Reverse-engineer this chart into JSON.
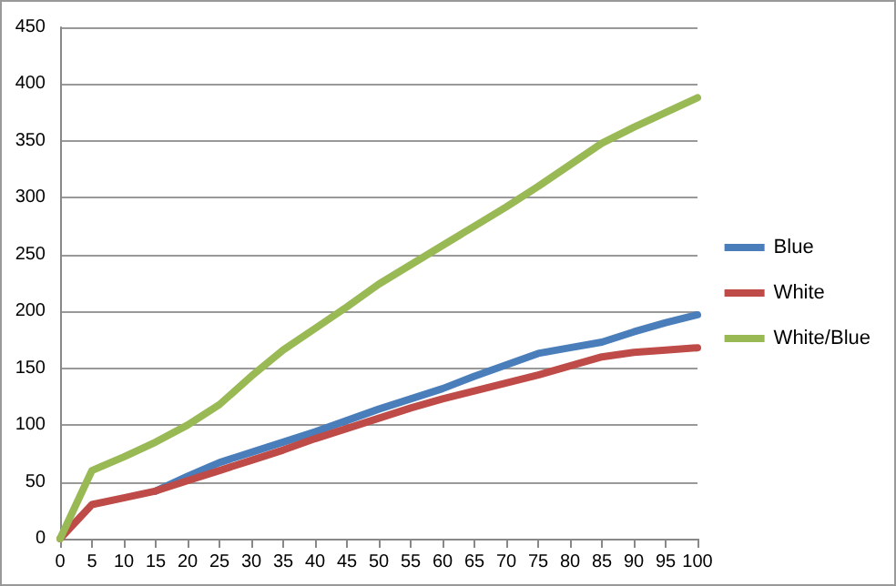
{
  "chart_data": {
    "type": "line",
    "categories": [
      "0",
      "5",
      "10",
      "15",
      "20",
      "25",
      "30",
      "35",
      "40",
      "45",
      "50",
      "55",
      "60",
      "65",
      "70",
      "75",
      "80",
      "85",
      "90",
      "95",
      "100"
    ],
    "series": [
      {
        "name": "Blue",
        "color": "#4a7ebb",
        "values": [
          null,
          null,
          null,
          42,
          55,
          67,
          76,
          85,
          94,
          104,
          114,
          123,
          132,
          143,
          153,
          163,
          168,
          173,
          182,
          190,
          197
        ]
      },
      {
        "name": "White",
        "color": "#be4b48",
        "values": [
          0,
          30,
          36,
          42,
          51,
          60,
          69,
          78,
          88,
          97,
          106,
          115,
          123,
          130,
          137,
          144,
          152,
          160,
          164,
          166,
          168
        ]
      },
      {
        "name": "White/Blue",
        "color": "#98b954",
        "values": [
          0,
          60,
          72,
          85,
          100,
          118,
          143,
          166,
          185,
          204,
          224,
          241,
          258,
          275,
          292,
          310,
          329,
          348,
          362,
          375,
          388
        ]
      }
    ],
    "ylim": [
      0,
      450
    ],
    "yticks": [
      0,
      50,
      100,
      150,
      200,
      250,
      300,
      350,
      400,
      450
    ],
    "grid": "y",
    "legend": "right",
    "marker": "none",
    "line_style": "solid"
  }
}
